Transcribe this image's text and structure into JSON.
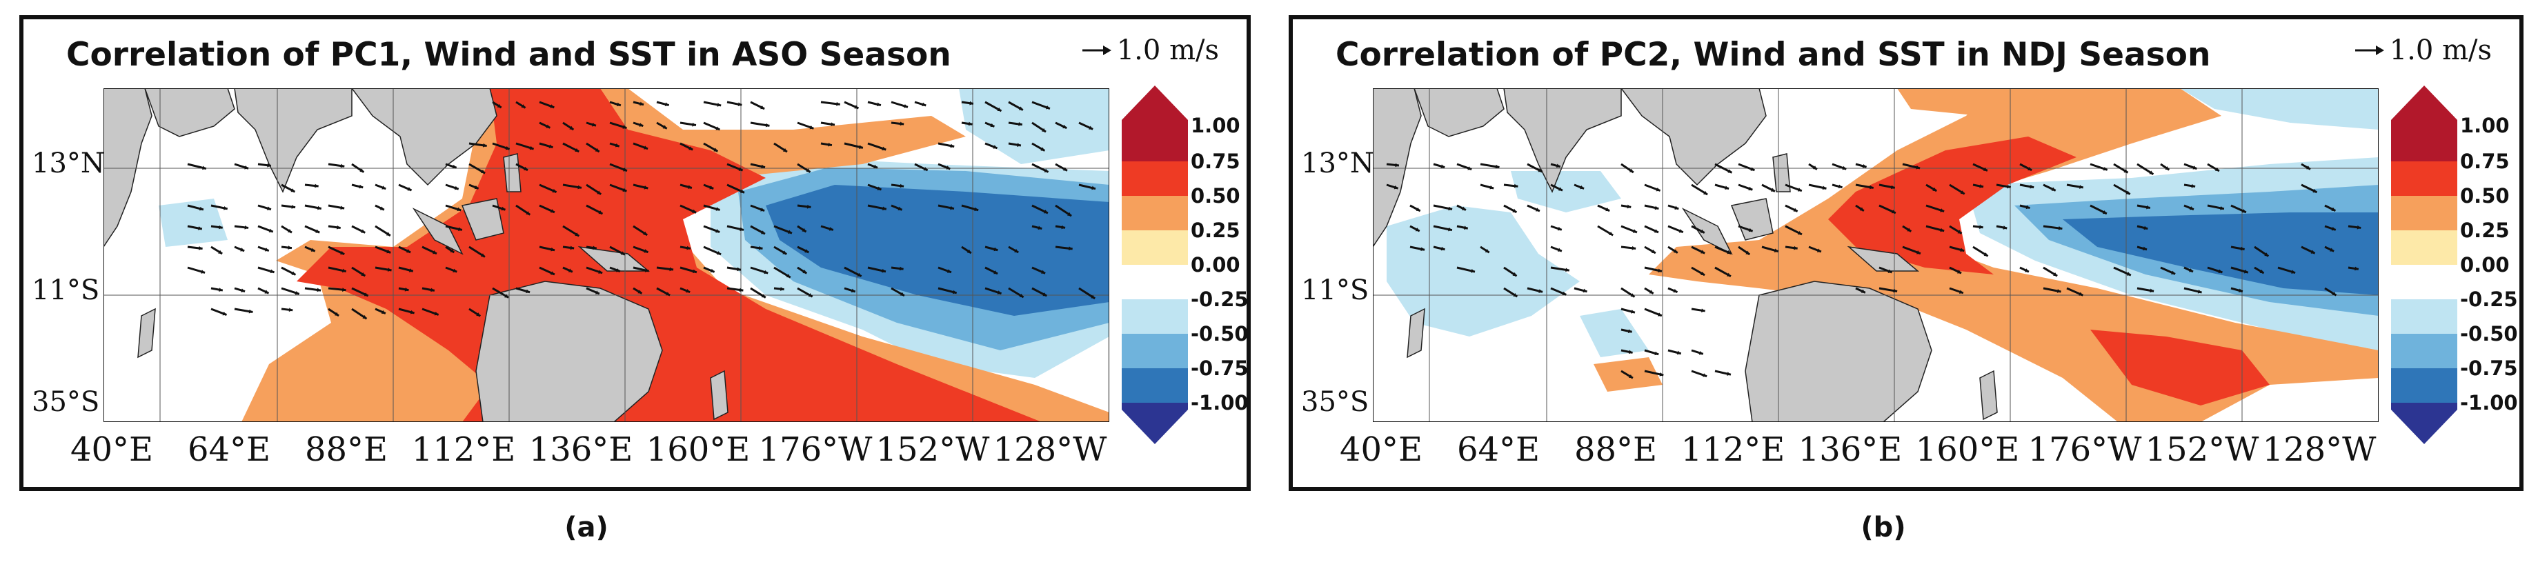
{
  "figure": {
    "panels": [
      {
        "id": "a",
        "title": "Correlation of PC1, Wind and SST in ASO Season",
        "reference_vector": "1.0 m/s",
        "lat_labels": [
          "13°N",
          "11°S",
          "35°S"
        ],
        "lon_labels": [
          "40°E",
          "64°E",
          "88°E",
          "112°E",
          "136°E",
          "160°E",
          "176°W",
          "152°W",
          "128°W"
        ],
        "colorbar_ticks": [
          "1.00",
          "0.75",
          "0.50",
          "0.25",
          "0.00",
          "-0.25",
          "-0.50",
          "-0.75",
          "-1.00"
        ],
        "sub_label": "(a)"
      },
      {
        "id": "b",
        "title": "Correlation of PC2, Wind and SST in NDJ Season",
        "reference_vector": "1.0 m/s",
        "lat_labels": [
          "13°N",
          "11°S",
          "35°S"
        ],
        "lon_labels": [
          "40°E",
          "64°E",
          "88°E",
          "112°E",
          "136°E",
          "160°E",
          "176°W",
          "152°W",
          "128°W"
        ],
        "colorbar_ticks": [
          "1.00",
          "0.75",
          "0.50",
          "0.25",
          "0.00",
          "-0.25",
          "-0.50",
          "-0.75",
          "-1.00"
        ],
        "sub_label": "(b)"
      }
    ],
    "colors": {
      "land": "#c8c8c8",
      "c_100": "#b2182b",
      "c_075": "#ee3b24",
      "c_050": "#f6a05c",
      "c_025": "#fde9a8",
      "c_n025": "#bfe4f2",
      "c_n050": "#6fb3dc",
      "c_n075": "#2f76b8",
      "c_n100": "#2c3592",
      "white": "#ffffff"
    }
  }
}
